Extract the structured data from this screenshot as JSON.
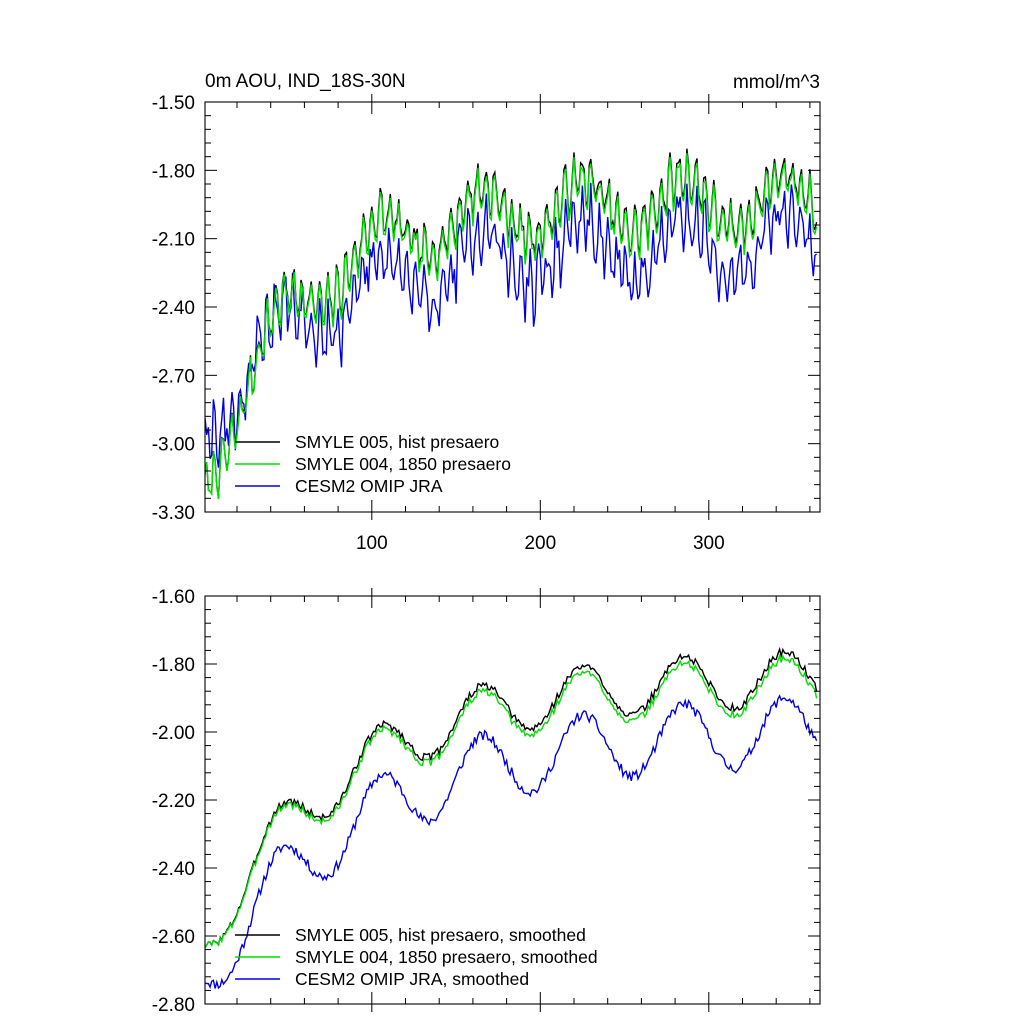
{
  "figure": {
    "title_left": "0m AOU, IND_18S-30N",
    "title_right": "mmol/m^3"
  },
  "colors": {
    "hist": "#000000",
    "p1850": "#00dd00",
    "omip": "#0000dd"
  },
  "chart_data": [
    {
      "type": "line",
      "name": "monthly",
      "xlim": [
        1,
        366
      ],
      "ylim": [
        -3.3,
        -1.5
      ],
      "yticks": [
        "-1.50",
        "-1.80",
        "-2.10",
        "-2.40",
        "-2.70",
        "-3.00",
        "-3.30"
      ],
      "ytick_values": [
        -1.5,
        -1.8,
        -2.1,
        -2.4,
        -2.7,
        -3.0,
        -3.3
      ],
      "xticks": [
        "100",
        "200",
        "300"
      ],
      "xtick_values": [
        100,
        200,
        300
      ],
      "legend": [
        "SMYLE 005, hist presaero",
        "SMYLE 004, 1850 presaero",
        "CESM2 OMIP JRA"
      ],
      "series_model": {
        "hist": {
          "start": -3.18,
          "plateau": -1.93,
          "tau": 55,
          "annual_amp": 0.12,
          "cycle_amp": 0.09,
          "noise": 0.05,
          "seed": 7
        },
        "p1850": {
          "start": -3.18,
          "plateau": -1.95,
          "tau": 55,
          "annual_amp": 0.12,
          "cycle_amp": 0.09,
          "noise": 0.05,
          "seed": 7
        },
        "omip": {
          "start": -2.92,
          "plateau": -2.12,
          "tau": 70,
          "annual_amp": 0.14,
          "cycle_amp": 0.1,
          "noise": 0.09,
          "seed": 19
        }
      }
    },
    {
      "type": "line",
      "name": "smoothed",
      "xlim": [
        1,
        366
      ],
      "ylim": [
        -2.8,
        -1.6
      ],
      "yticks": [
        "-1.60",
        "-1.80",
        "-2.00",
        "-2.20",
        "-2.40",
        "-2.60",
        "-2.80"
      ],
      "ytick_values": [
        -1.6,
        -1.8,
        -2.0,
        -2.2,
        -2.4,
        -2.6,
        -2.8
      ],
      "xticks": [
        "",
        "",
        ""
      ],
      "xtick_values": [
        100,
        200,
        300
      ],
      "legend": [
        "SMYLE 005, hist presaero, smoothed",
        "SMYLE 004, 1850 presaero, smoothed",
        "CESM2 OMIP JRA, smoothed"
      ],
      "series_model": {
        "hist": {
          "start": -2.62,
          "plateau": -1.83,
          "tau": 85,
          "annual_amp": 0.08,
          "cycle_amp": 0.0,
          "noise": 0.012,
          "seed": 3
        },
        "p1850": {
          "start": -2.62,
          "plateau": -1.85,
          "tau": 85,
          "annual_amp": 0.08,
          "cycle_amp": 0.0,
          "noise": 0.012,
          "seed": 3
        },
        "omip": {
          "start": -2.72,
          "plateau": -1.98,
          "tau": 95,
          "annual_amp": 0.1,
          "cycle_amp": 0.0,
          "noise": 0.015,
          "seed": 11
        }
      }
    }
  ]
}
